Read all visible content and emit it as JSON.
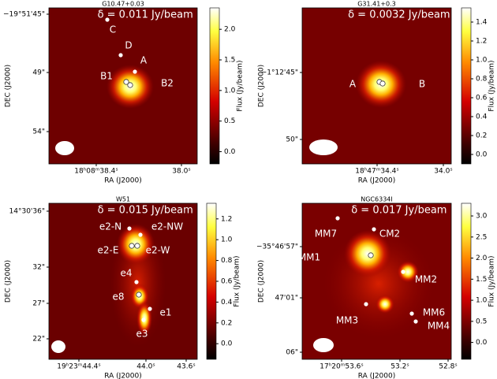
{
  "panels": [
    {
      "title": "G10.47+0.03",
      "annotation": "δ = 0.011 Jy/beam",
      "xlabel": "RA (J2000)",
      "ylabel": "DEC (J2000)",
      "xticks": [
        "18ʰ08ᵐ38.4ˢ",
        "38.0ˢ"
      ],
      "yticks": [
        "−19°51'45\"",
        "49\"",
        "54\""
      ],
      "sources": [
        "A",
        "B1",
        "B2",
        "C",
        "D"
      ],
      "colorbar": {
        "label": "Flux (Jy/beam)",
        "lim": [
          -0.2,
          2.35
        ],
        "ticks": [
          {
            "value": 0,
            "label": "0.0"
          },
          {
            "value": 0.5,
            "label": "0.5"
          },
          {
            "value": 1,
            "label": "1.0"
          },
          {
            "value": 1.5,
            "label": "1.5"
          },
          {
            "value": 2,
            "label": "2.0"
          }
        ]
      }
    },
    {
      "title": "G31.41+0.3",
      "annotation": "δ = 0.0032 Jy/beam",
      "xlabel": "RA (J2000)",
      "ylabel": "DEC (J2000)",
      "xticks": [
        "18ʰ47ᵐ34.4ˢ",
        "34.0ˢ"
      ],
      "yticks": [
        "−1°12'45\"",
        "50\""
      ],
      "sources": [
        "A",
        "B"
      ],
      "colorbar": {
        "label": "Flux (Jy/beam)",
        "lim": [
          -0.1,
          1.55
        ],
        "ticks": [
          {
            "value": 0,
            "label": "0.0"
          },
          {
            "value": 0.2,
            "label": "0.2"
          },
          {
            "value": 0.4,
            "label": "0.4"
          },
          {
            "value": 0.6,
            "label": "0.6"
          },
          {
            "value": 0.8,
            "label": "0.8"
          },
          {
            "value": 1,
            "label": "1.0"
          },
          {
            "value": 1.2,
            "label": "1.2"
          },
          {
            "value": 1.4,
            "label": "1.4"
          }
        ]
      }
    },
    {
      "title": "W51",
      "annotation": "δ = 0.015 Jy/beam",
      "xlabel": "RA (J2000)",
      "ylabel": "DEC (J2000)",
      "xticks": [
        "19ʰ23ᵐ44.4ˢ",
        "44.0ˢ",
        "43.6ˢ"
      ],
      "yticks": [
        "14°30'36\"",
        "32\"",
        "27\"",
        "22\""
      ],
      "sources": [
        "e2-N",
        "e2-NW",
        "e2-E",
        "e2-W",
        "e4",
        "e8",
        "e1",
        "e3"
      ],
      "colorbar": {
        "label": "Flux (Jy/beam)",
        "lim": [
          -0.15,
          1.35
        ],
        "ticks": [
          {
            "value": 0,
            "label": "0.0"
          },
          {
            "value": 0.2,
            "label": "0.2"
          },
          {
            "value": 0.4,
            "label": "0.4"
          },
          {
            "value": 0.6,
            "label": "0.6"
          },
          {
            "value": 0.8,
            "label": "0.8"
          },
          {
            "value": 1,
            "label": "1.0"
          },
          {
            "value": 1.2,
            "label": "1.2"
          }
        ]
      }
    },
    {
      "title": "NGC6334I",
      "annotation": "δ = 0.017 Jy/beam",
      "xlabel": "RA (J2000)",
      "ylabel": "DEC (J2000)",
      "xticks": [
        "17ʰ20ᵐ53.6ˢ",
        "53.2ˢ",
        "52.8ˢ"
      ],
      "yticks": [
        "−35°46'57\"",
        "47'01\"",
        "06\""
      ],
      "sources": [
        "MM7",
        "CM2",
        "MM1",
        "MM2",
        "MM6",
        "MM3",
        "MM4"
      ],
      "colorbar": {
        "label": "Flux (Jy/beam)",
        "lim": [
          -0.4,
          3.3
        ],
        "ticks": [
          {
            "value": 0,
            "label": "0.0"
          },
          {
            "value": 0.5,
            "label": "0.5"
          },
          {
            "value": 1,
            "label": "1.0"
          },
          {
            "value": 1.5,
            "label": "1.5"
          },
          {
            "value": 2,
            "label": "2.0"
          },
          {
            "value": 2.5,
            "label": "2.5"
          },
          {
            "value": 3,
            "label": "3.0"
          }
        ]
      }
    }
  ]
}
